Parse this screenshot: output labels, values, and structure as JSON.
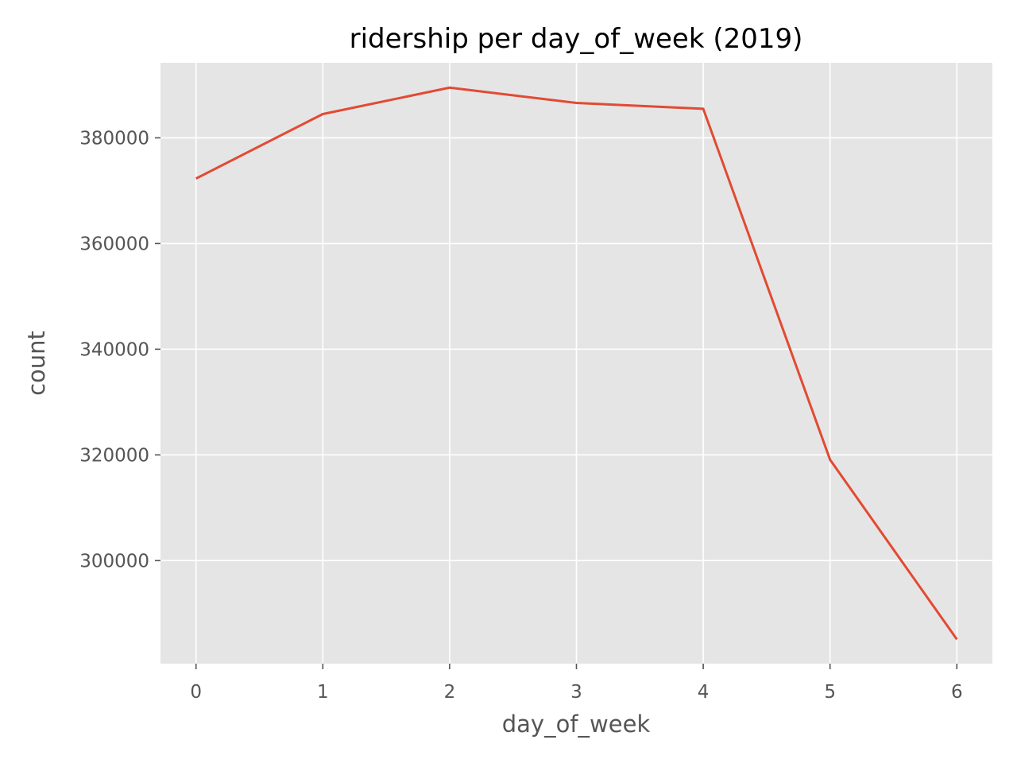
{
  "chart_data": {
    "type": "line",
    "title": "ridership per day_of_week (2019)",
    "xlabel": "day_of_week",
    "ylabel": "count",
    "x": [
      0,
      1,
      2,
      3,
      4,
      5,
      6
    ],
    "series": [
      {
        "values": [
          372300,
          384500,
          389500,
          386600,
          385500,
          319100,
          285100
        ]
      }
    ],
    "xlim": [
      -0.28,
      6.28
    ],
    "ylim": [
      280500,
      394200
    ],
    "xticks": [
      0,
      1,
      2,
      3,
      4,
      5,
      6
    ],
    "yticks": [
      300000,
      320000,
      340000,
      360000,
      380000
    ],
    "grid": true,
    "colors": {
      "line": "#e24a33",
      "plot_background": "#e5e5e5",
      "grid": "#ffffff",
      "tick_text": "#555555"
    }
  }
}
